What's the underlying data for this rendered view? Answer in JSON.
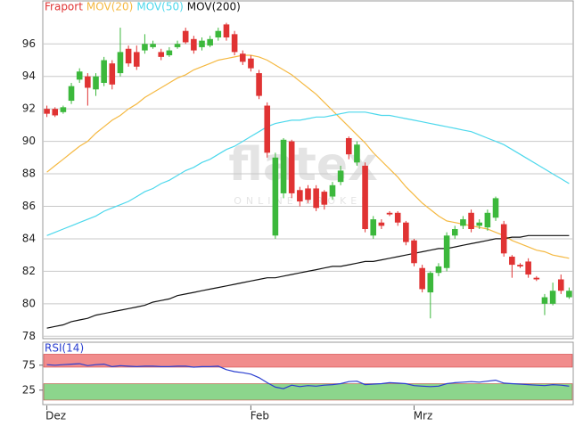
{
  "watermark": {
    "logo": "flatex",
    "tagline": "ONLINE BROKER"
  },
  "chart_data": [
    {
      "type": "candlestick",
      "name": "Fraport",
      "color_up": "#3cb83c",
      "color_down": "#e03333",
      "open": [
        92.0,
        92.0,
        91.8,
        92.5,
        93.8,
        94.0,
        93.2,
        93.6,
        94.8,
        94.2,
        95.7,
        95.5,
        95.6,
        95.8,
        95.5,
        95.3,
        95.8,
        96.8,
        96.3,
        95.8,
        95.9,
        96.4,
        97.2,
        96.6,
        95.4,
        95.1,
        94.2,
        92.2,
        84.2,
        86.8,
        90.0,
        87.0,
        87.1,
        87.1,
        86.9,
        86.6,
        87.5,
        90.2,
        88.7,
        88.5,
        84.2,
        85.0,
        85.6,
        85.6,
        85.0,
        83.9,
        82.2,
        80.7,
        81.9,
        82.2,
        84.2,
        84.8,
        85.6,
        84.8,
        84.7,
        85.3,
        84.9,
        82.9,
        82.4,
        82.6,
        81.6,
        80.0,
        80.0,
        81.5,
        80.4
      ],
      "high": [
        92.2,
        92.1,
        92.2,
        93.6,
        94.5,
        94.2,
        94.2,
        95.2,
        95.0,
        97.0,
        95.9,
        95.9,
        96.6,
        96.2,
        95.7,
        95.8,
        96.2,
        97.0,
        96.5,
        96.4,
        96.5,
        97.0,
        97.3,
        96.8,
        95.6,
        95.3,
        94.4,
        92.4,
        89.3,
        90.2,
        90.1,
        87.2,
        87.3,
        87.3,
        87.0,
        87.5,
        88.5,
        90.3,
        90.0,
        88.7,
        85.4,
        85.2,
        85.7,
        85.7,
        85.1,
        84.0,
        82.4,
        82.0,
        82.5,
        84.4,
        84.8,
        85.4,
        85.8,
        85.2,
        85.8,
        86.6,
        85.1,
        83.0,
        82.5,
        82.8,
        81.7,
        80.6,
        81.3,
        81.8,
        81.0
      ],
      "low": [
        91.5,
        91.5,
        91.7,
        92.3,
        93.6,
        92.2,
        92.8,
        93.4,
        93.2,
        94.0,
        94.6,
        94.4,
        95.4,
        95.7,
        95.0,
        95.2,
        95.7,
        96.0,
        95.4,
        95.6,
        95.8,
        96.2,
        96.2,
        95.3,
        94.7,
        94.3,
        92.6,
        89.0,
        84.0,
        86.5,
        86.5,
        86.0,
        86.2,
        85.7,
        85.8,
        86.4,
        87.3,
        88.9,
        88.5,
        84.4,
        84.0,
        84.6,
        85.4,
        84.8,
        83.6,
        82.3,
        80.7,
        79.1,
        81.7,
        82.0,
        84.0,
        84.6,
        84.4,
        84.6,
        84.5,
        85.1,
        82.9,
        81.6,
        82.2,
        81.6,
        81.4,
        79.3,
        79.9,
        80.6,
        80.3
      ],
      "close": [
        91.7,
        91.6,
        92.1,
        93.4,
        94.3,
        93.3,
        94.0,
        95.0,
        93.5,
        95.5,
        94.8,
        94.6,
        96.0,
        96.0,
        95.2,
        95.6,
        96.0,
        96.1,
        95.6,
        96.2,
        96.3,
        96.8,
        96.4,
        95.5,
        94.9,
        94.5,
        92.8,
        89.3,
        89.0,
        90.1,
        86.8,
        86.3,
        86.4,
        85.9,
        86.1,
        87.3,
        88.2,
        89.2,
        89.8,
        84.6,
        85.2,
        84.8,
        85.5,
        85.0,
        83.8,
        82.5,
        80.9,
        81.9,
        82.3,
        84.2,
        84.6,
        85.2,
        84.6,
        85.0,
        85.6,
        86.5,
        83.1,
        82.4,
        82.3,
        81.8,
        81.5,
        80.4,
        80.8,
        80.8,
        80.8
      ],
      "overlays": [
        {
          "name": "MOV(20)",
          "color": "#f5b942",
          "values": [
            88.1,
            88.5,
            88.9,
            89.3,
            89.7,
            90.0,
            90.5,
            90.9,
            91.3,
            91.6,
            92.0,
            92.3,
            92.7,
            93.0,
            93.3,
            93.6,
            93.9,
            94.1,
            94.4,
            94.6,
            94.8,
            95.0,
            95.1,
            95.2,
            95.3,
            95.3,
            95.2,
            95.0,
            94.7,
            94.4,
            94.1,
            93.7,
            93.3,
            92.9,
            92.4,
            91.9,
            91.4,
            90.9,
            90.4,
            89.9,
            89.3,
            88.8,
            88.3,
            87.8,
            87.2,
            86.7,
            86.2,
            85.8,
            85.4,
            85.1,
            85.0,
            84.9,
            84.8,
            84.7,
            84.6,
            84.4,
            84.2,
            83.9,
            83.7,
            83.5,
            83.3,
            83.2,
            83.0,
            82.9,
            82.8
          ]
        },
        {
          "name": "MOV(50)",
          "color": "#4dd8ec",
          "values": [
            84.2,
            84.4,
            84.6,
            84.8,
            85.0,
            85.2,
            85.4,
            85.7,
            85.9,
            86.1,
            86.3,
            86.6,
            86.9,
            87.1,
            87.4,
            87.6,
            87.9,
            88.2,
            88.4,
            88.7,
            88.9,
            89.2,
            89.5,
            89.7,
            90.0,
            90.3,
            90.6,
            90.9,
            91.1,
            91.2,
            91.3,
            91.3,
            91.4,
            91.5,
            91.5,
            91.6,
            91.7,
            91.8,
            91.8,
            91.8,
            91.7,
            91.6,
            91.6,
            91.5,
            91.4,
            91.3,
            91.2,
            91.1,
            91.0,
            90.9,
            90.8,
            90.7,
            90.6,
            90.4,
            90.2,
            90.0,
            89.8,
            89.5,
            89.2,
            88.9,
            88.6,
            88.3,
            88.0,
            87.7,
            87.4
          ]
        },
        {
          "name": "MOV(200)",
          "color": "#111111",
          "values": [
            78.5,
            78.6,
            78.7,
            78.9,
            79.0,
            79.1,
            79.3,
            79.4,
            79.5,
            79.6,
            79.7,
            79.8,
            79.9,
            80.1,
            80.2,
            80.3,
            80.5,
            80.6,
            80.7,
            80.8,
            80.9,
            81.0,
            81.1,
            81.2,
            81.3,
            81.4,
            81.5,
            81.6,
            81.6,
            81.7,
            81.8,
            81.9,
            82.0,
            82.1,
            82.2,
            82.3,
            82.3,
            82.4,
            82.5,
            82.6,
            82.6,
            82.7,
            82.8,
            82.9,
            83.0,
            83.1,
            83.2,
            83.3,
            83.4,
            83.4,
            83.5,
            83.6,
            83.7,
            83.8,
            83.9,
            84.0,
            84.0,
            84.1,
            84.1,
            84.2,
            84.2,
            84.2,
            84.2,
            84.2,
            84.2
          ]
        }
      ],
      "xlim": [
        -0.5,
        64.5
      ],
      "xticks": [
        {
          "value": 0,
          "label": "Dez"
        },
        {
          "value": 25,
          "label": "Feb"
        },
        {
          "value": 45,
          "label": "Mrz"
        }
      ],
      "ylim": [
        77.85,
        98.65
      ],
      "yticks": [
        78,
        80,
        82,
        84,
        86,
        88,
        90,
        92,
        94,
        96
      ],
      "grid": true
    },
    {
      "type": "line",
      "series": [
        {
          "name": "RSI(14)",
          "color": "#2a3fd0",
          "values": [
            76,
            75,
            76,
            77,
            78,
            74,
            76,
            77,
            72,
            74,
            73,
            72,
            73,
            73,
            72,
            72,
            73,
            73,
            71,
            72,
            72,
            73,
            66,
            62,
            60,
            57,
            50,
            40,
            31,
            28,
            35,
            32,
            34,
            33,
            35,
            36,
            38,
            42,
            43,
            36,
            37,
            38,
            40,
            39,
            38,
            34,
            33,
            32,
            33,
            38,
            40,
            41,
            42,
            41,
            43,
            45,
            39,
            38,
            37,
            36,
            35,
            34,
            36,
            35,
            33
          ]
        }
      ],
      "xlim": [
        -0.5,
        64.5
      ],
      "ylim": [
        -4,
        121
      ],
      "yticks": [
        25,
        75
      ],
      "upper_band": {
        "range": [
          71,
          97
        ],
        "color": "#f08080"
      },
      "lower_band": {
        "range": [
          5,
          38
        ],
        "color": "#7fd07f"
      }
    }
  ]
}
